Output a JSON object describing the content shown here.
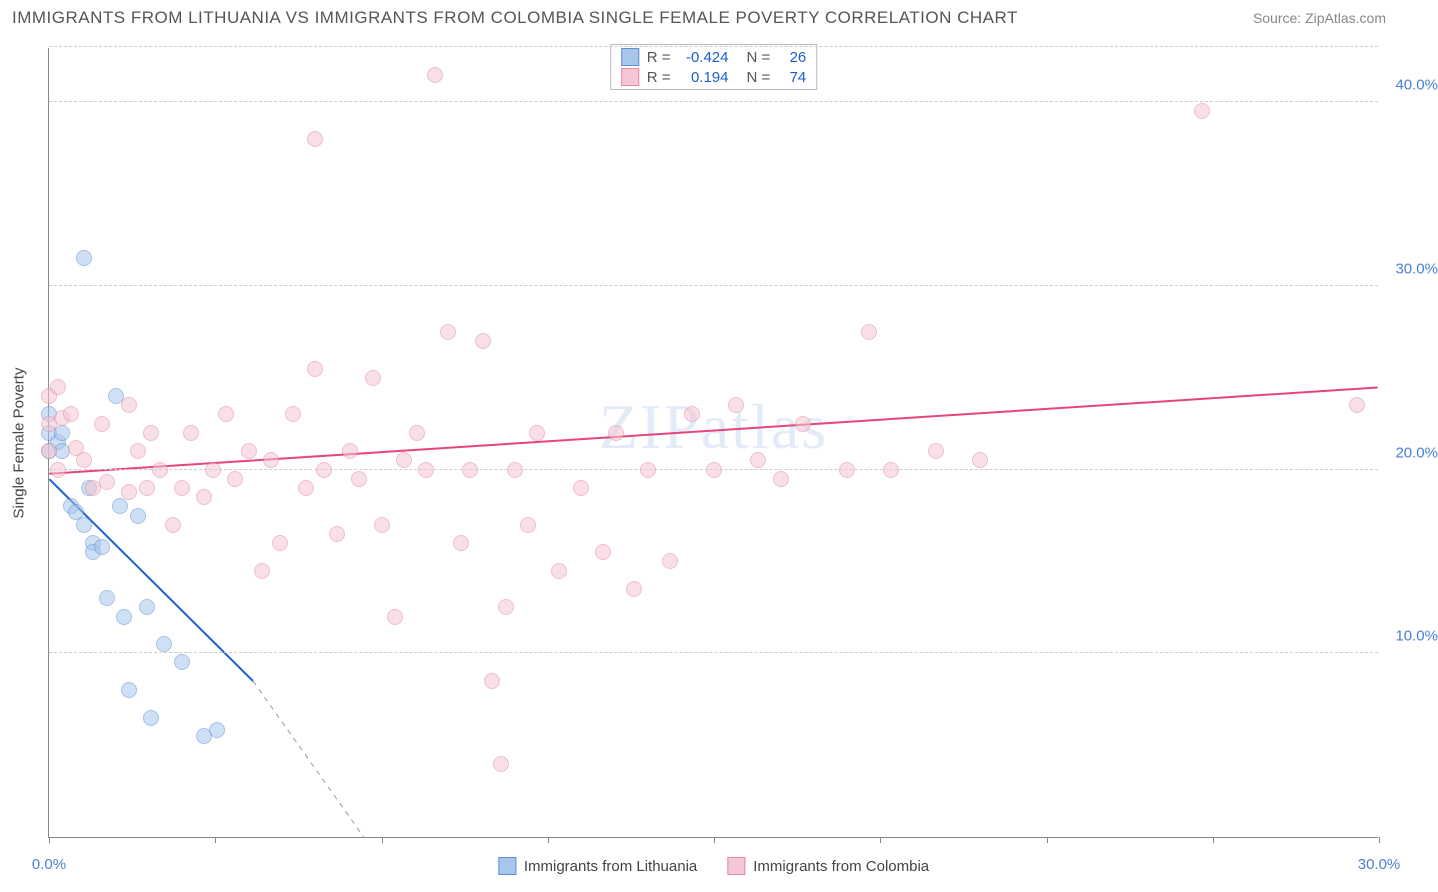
{
  "title": "IMMIGRANTS FROM LITHUANIA VS IMMIGRANTS FROM COLOMBIA SINGLE FEMALE POVERTY CORRELATION CHART",
  "source_label": "Source: ZipAtlas.com",
  "watermark": "ZIPatlas",
  "y_axis_title": "Single Female Poverty",
  "chart": {
    "type": "scatter",
    "background_color": "#ffffff",
    "grid_color": "#cccccc",
    "axis_color": "#888888",
    "xlim": [
      0,
      30
    ],
    "ylim": [
      0,
      43
    ],
    "x_ticks": [
      0,
      3.75,
      7.5,
      11.25,
      15,
      18.75,
      22.5,
      26.25,
      30
    ],
    "x_tick_labels": {
      "0": "0.0%",
      "30": "30.0%"
    },
    "y_gridlines": [
      10,
      20,
      30,
      40,
      43
    ],
    "y_tick_labels": {
      "10": "10.0%",
      "20": "20.0%",
      "30": "30.0%",
      "40": "40.0%"
    },
    "tick_label_color": "#4a7fd8",
    "tick_label_fontsize": 15,
    "axis_title_color": "#444444",
    "point_radius": 8,
    "point_opacity": 0.55,
    "series": [
      {
        "id": "lithuania",
        "label": "Immigrants from Lithuania",
        "fill_color": "#a8c5ec",
        "stroke_color": "#5b8fd6",
        "r_value": "-0.424",
        "n_value": "26",
        "trend": {
          "x1": 0,
          "y1": 19.5,
          "x2": 4.6,
          "y2": 8.5,
          "dash_x2": 7.1,
          "dash_y2": 0,
          "color": "#1a5fd0",
          "width": 2
        },
        "points": [
          [
            0.0,
            22.0
          ],
          [
            0.0,
            21.0
          ],
          [
            0.0,
            23.0
          ],
          [
            0.2,
            21.5
          ],
          [
            0.3,
            21.0
          ],
          [
            0.3,
            22.0
          ],
          [
            0.5,
            18.0
          ],
          [
            0.6,
            17.7
          ],
          [
            0.8,
            17.0
          ],
          [
            0.9,
            19.0
          ],
          [
            1.0,
            16.0
          ],
          [
            1.0,
            15.5
          ],
          [
            1.2,
            15.8
          ],
          [
            1.3,
            13.0
          ],
          [
            1.5,
            24.0
          ],
          [
            1.6,
            18.0
          ],
          [
            1.7,
            12.0
          ],
          [
            1.8,
            8.0
          ],
          [
            2.0,
            17.5
          ],
          [
            2.2,
            12.5
          ],
          [
            2.3,
            6.5
          ],
          [
            2.6,
            10.5
          ],
          [
            3.0,
            9.5
          ],
          [
            3.5,
            5.5
          ],
          [
            3.8,
            5.8
          ],
          [
            0.8,
            31.5
          ]
        ]
      },
      {
        "id": "colombia",
        "label": "Immigrants from Colombia",
        "fill_color": "#f5c6d3",
        "stroke_color": "#e589a4",
        "r_value": "0.194",
        "n_value": "74",
        "trend": {
          "x1": 0,
          "y1": 19.8,
          "x2": 30,
          "y2": 24.5,
          "color": "#e6447a",
          "width": 2
        },
        "points": [
          [
            0.0,
            22.5
          ],
          [
            0.0,
            21.0
          ],
          [
            0.2,
            20.0
          ],
          [
            0.3,
            22.8
          ],
          [
            0.5,
            23.0
          ],
          [
            0.6,
            21.2
          ],
          [
            0.8,
            20.5
          ],
          [
            1.0,
            19.0
          ],
          [
            1.2,
            22.5
          ],
          [
            1.3,
            19.3
          ],
          [
            1.8,
            23.5
          ],
          [
            1.8,
            18.8
          ],
          [
            2.0,
            21.0
          ],
          [
            2.2,
            19.0
          ],
          [
            2.3,
            22.0
          ],
          [
            2.5,
            20.0
          ],
          [
            2.8,
            17.0
          ],
          [
            3.0,
            19.0
          ],
          [
            3.2,
            22.0
          ],
          [
            3.5,
            18.5
          ],
          [
            3.7,
            20.0
          ],
          [
            4.0,
            23.0
          ],
          [
            4.2,
            19.5
          ],
          [
            4.5,
            21.0
          ],
          [
            4.8,
            14.5
          ],
          [
            5.0,
            20.5
          ],
          [
            5.2,
            16.0
          ],
          [
            5.5,
            23.0
          ],
          [
            5.8,
            19.0
          ],
          [
            6.0,
            25.5
          ],
          [
            6.2,
            20.0
          ],
          [
            6.5,
            16.5
          ],
          [
            6.8,
            21.0
          ],
          [
            7.0,
            19.5
          ],
          [
            7.3,
            25.0
          ],
          [
            7.5,
            17.0
          ],
          [
            7.8,
            12.0
          ],
          [
            8.0,
            20.5
          ],
          [
            8.3,
            22.0
          ],
          [
            8.5,
            20.0
          ],
          [
            8.7,
            41.5
          ],
          [
            9.0,
            27.5
          ],
          [
            9.3,
            16.0
          ],
          [
            9.5,
            20.0
          ],
          [
            9.8,
            27.0
          ],
          [
            10.0,
            8.5
          ],
          [
            10.2,
            4.0
          ],
          [
            10.3,
            12.5
          ],
          [
            10.5,
            20.0
          ],
          [
            10.8,
            17.0
          ],
          [
            11.0,
            22.0
          ],
          [
            11.5,
            14.5
          ],
          [
            12.0,
            19.0
          ],
          [
            12.5,
            15.5
          ],
          [
            12.8,
            22.0
          ],
          [
            13.2,
            13.5
          ],
          [
            13.5,
            20.0
          ],
          [
            14.0,
            15.0
          ],
          [
            14.5,
            23.0
          ],
          [
            15.0,
            20.0
          ],
          [
            15.5,
            23.5
          ],
          [
            16.0,
            20.5
          ],
          [
            16.5,
            19.5
          ],
          [
            17.0,
            22.5
          ],
          [
            18.0,
            20.0
          ],
          [
            18.5,
            27.5
          ],
          [
            19.0,
            20.0
          ],
          [
            20.0,
            21.0
          ],
          [
            21.0,
            20.5
          ],
          [
            26.0,
            39.5
          ],
          [
            29.5,
            23.5
          ],
          [
            6.0,
            38.0
          ],
          [
            0.0,
            24.0
          ],
          [
            0.2,
            24.5
          ]
        ]
      }
    ]
  },
  "legend_top": {
    "r_label": "R =",
    "n_label": "N ="
  }
}
